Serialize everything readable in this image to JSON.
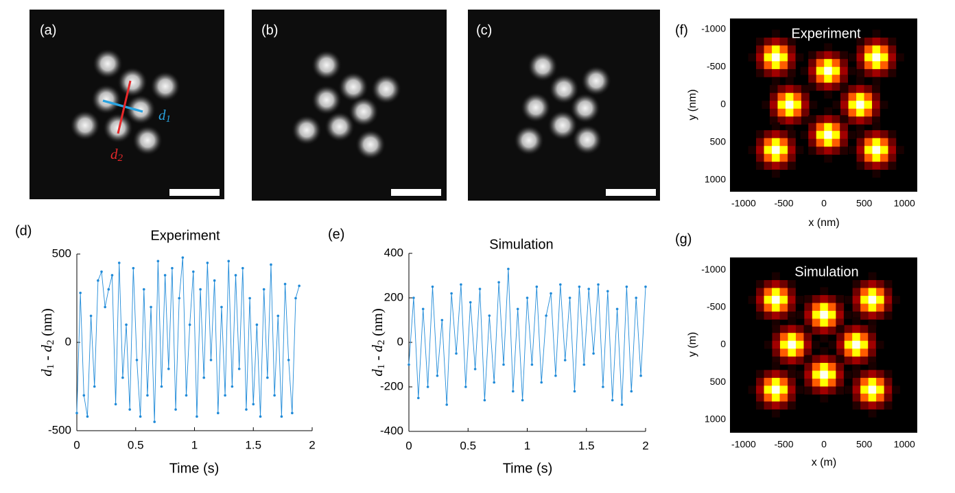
{
  "panels": {
    "a": "(a)",
    "b": "(b)",
    "c": "(c)",
    "d": "(d)",
    "e": "(e)",
    "f": "(f)",
    "g": "(g)"
  },
  "annotations": [
    {
      "base": "d",
      "sub": "1",
      "color": "#29a3e0"
    },
    {
      "base": "d",
      "sub": "2",
      "color": "#e8282a"
    }
  ],
  "chart_data": [
    {
      "type": "line",
      "title": "Experiment",
      "xlabel": "Time (s)",
      "ylabel": [
        {
          "text": "d"
        },
        {
          "sub": "1"
        },
        {
          "text": " - "
        },
        {
          "text": "d"
        },
        {
          "sub": "2"
        },
        {
          "text": " (nm)"
        }
      ],
      "xlim": [
        0,
        2
      ],
      "xticks": [
        0,
        0.5,
        1,
        1.5,
        2
      ],
      "ylim": [
        -500,
        500
      ],
      "yticks": [
        -500,
        0,
        500
      ],
      "series": [
        {
          "color": "#1f8ad8",
          "x": [
            0,
            0.03,
            0.06,
            0.09,
            0.12,
            0.15,
            0.18,
            0.21,
            0.24,
            0.27,
            0.3,
            0.33,
            0.36,
            0.39,
            0.42,
            0.45,
            0.48,
            0.51,
            0.54,
            0.57,
            0.6,
            0.63,
            0.66,
            0.69,
            0.72,
            0.75,
            0.78,
            0.81,
            0.84,
            0.87,
            0.9,
            0.93,
            0.96,
            0.99,
            1.02,
            1.05,
            1.08,
            1.11,
            1.14,
            1.17,
            1.2,
            1.23,
            1.26,
            1.29,
            1.32,
            1.35,
            1.38,
            1.41,
            1.44,
            1.47,
            1.5,
            1.53,
            1.56,
            1.59,
            1.62,
            1.65,
            1.68,
            1.71,
            1.74,
            1.77,
            1.8,
            1.83,
            1.86,
            1.89
          ],
          "values": [
            -400,
            280,
            -300,
            -420,
            150,
            -250,
            350,
            400,
            200,
            300,
            380,
            -350,
            450,
            -200,
            100,
            -380,
            420,
            -100,
            -420,
            300,
            -300,
            200,
            -450,
            460,
            -250,
            380,
            -150,
            420,
            -380,
            250,
            480,
            -300,
            100,
            400,
            -420,
            300,
            -200,
            450,
            -100,
            350,
            -400,
            200,
            -300,
            460,
            -250,
            380,
            -150,
            420,
            -380,
            250,
            -350,
            100,
            -420,
            300,
            -200,
            440,
            -300,
            150,
            -420,
            330,
            -100,
            -400,
            250,
            320
          ]
        }
      ]
    },
    {
      "type": "line",
      "title": "Simulation",
      "xlabel": "Time (s)",
      "ylabel": [
        {
          "text": "d"
        },
        {
          "sub": "1"
        },
        {
          "text": " - "
        },
        {
          "text": "d"
        },
        {
          "sub": "2"
        },
        {
          "text": " (nm)"
        }
      ],
      "xlim": [
        0,
        2
      ],
      "xticks": [
        0,
        0.5,
        1,
        1.5,
        2
      ],
      "ylim": [
        -400,
        400
      ],
      "yticks": [
        -400,
        -200,
        0,
        200,
        400
      ],
      "series": [
        {
          "color": "#1f8ad8",
          "x": [
            0,
            0.04,
            0.08,
            0.12,
            0.16,
            0.2,
            0.24,
            0.28,
            0.32,
            0.36,
            0.4,
            0.44,
            0.48,
            0.52,
            0.56,
            0.6,
            0.64,
            0.68,
            0.72,
            0.76,
            0.8,
            0.84,
            0.88,
            0.92,
            0.96,
            1,
            1.04,
            1.08,
            1.12,
            1.16,
            1.2,
            1.24,
            1.28,
            1.32,
            1.36,
            1.4,
            1.44,
            1.48,
            1.52,
            1.56,
            1.6,
            1.64,
            1.68,
            1.72,
            1.76,
            1.8,
            1.84,
            1.88,
            1.92,
            1.96,
            2
          ],
          "values": [
            -100,
            200,
            -250,
            150,
            -200,
            250,
            -150,
            100,
            -280,
            220,
            -50,
            260,
            -200,
            180,
            -120,
            240,
            -260,
            120,
            -180,
            270,
            -100,
            330,
            -220,
            150,
            -260,
            200,
            -100,
            250,
            -180,
            120,
            220,
            -150,
            260,
            -80,
            200,
            -220,
            250,
            -100,
            240,
            -50,
            260,
            -200,
            230,
            -260,
            150,
            -280,
            250,
            -220,
            200,
            -150,
            250
          ]
        }
      ]
    },
    {
      "type": "heatmap",
      "title": "Experiment",
      "xlabel": "x (nm)",
      "ylabel": "y (nm)",
      "xlim": [
        -1170,
        1160
      ],
      "xticks": [
        -1000,
        -500,
        0,
        500,
        1000
      ],
      "ylim": [
        -1145,
        1155
      ],
      "yticks": [
        -1000,
        -500,
        0,
        500,
        1000
      ],
      "y_reversed": true,
      "x": [
        -600,
        650,
        50,
        -430,
        450,
        50,
        -600,
        650
      ],
      "y": [
        -630,
        -630,
        -450,
        0,
        0,
        400,
        600,
        600
      ]
    },
    {
      "type": "heatmap",
      "title": "Simulation",
      "xlabel": "x (m)",
      "ylabel": "y (m)",
      "xlim": [
        -1170,
        1160
      ],
      "xticks": [
        -1000,
        -500,
        0,
        500,
        1000
      ],
      "ylim": [
        -1165,
        1175
      ],
      "yticks": [
        -1000,
        -500,
        0,
        500,
        1000
      ],
      "y_reversed": true,
      "x": [
        -600,
        600,
        0,
        -400,
        400,
        0,
        -600,
        600
      ],
      "y": [
        -600,
        -600,
        -400,
        0,
        0,
        400,
        600,
        600
      ]
    }
  ]
}
